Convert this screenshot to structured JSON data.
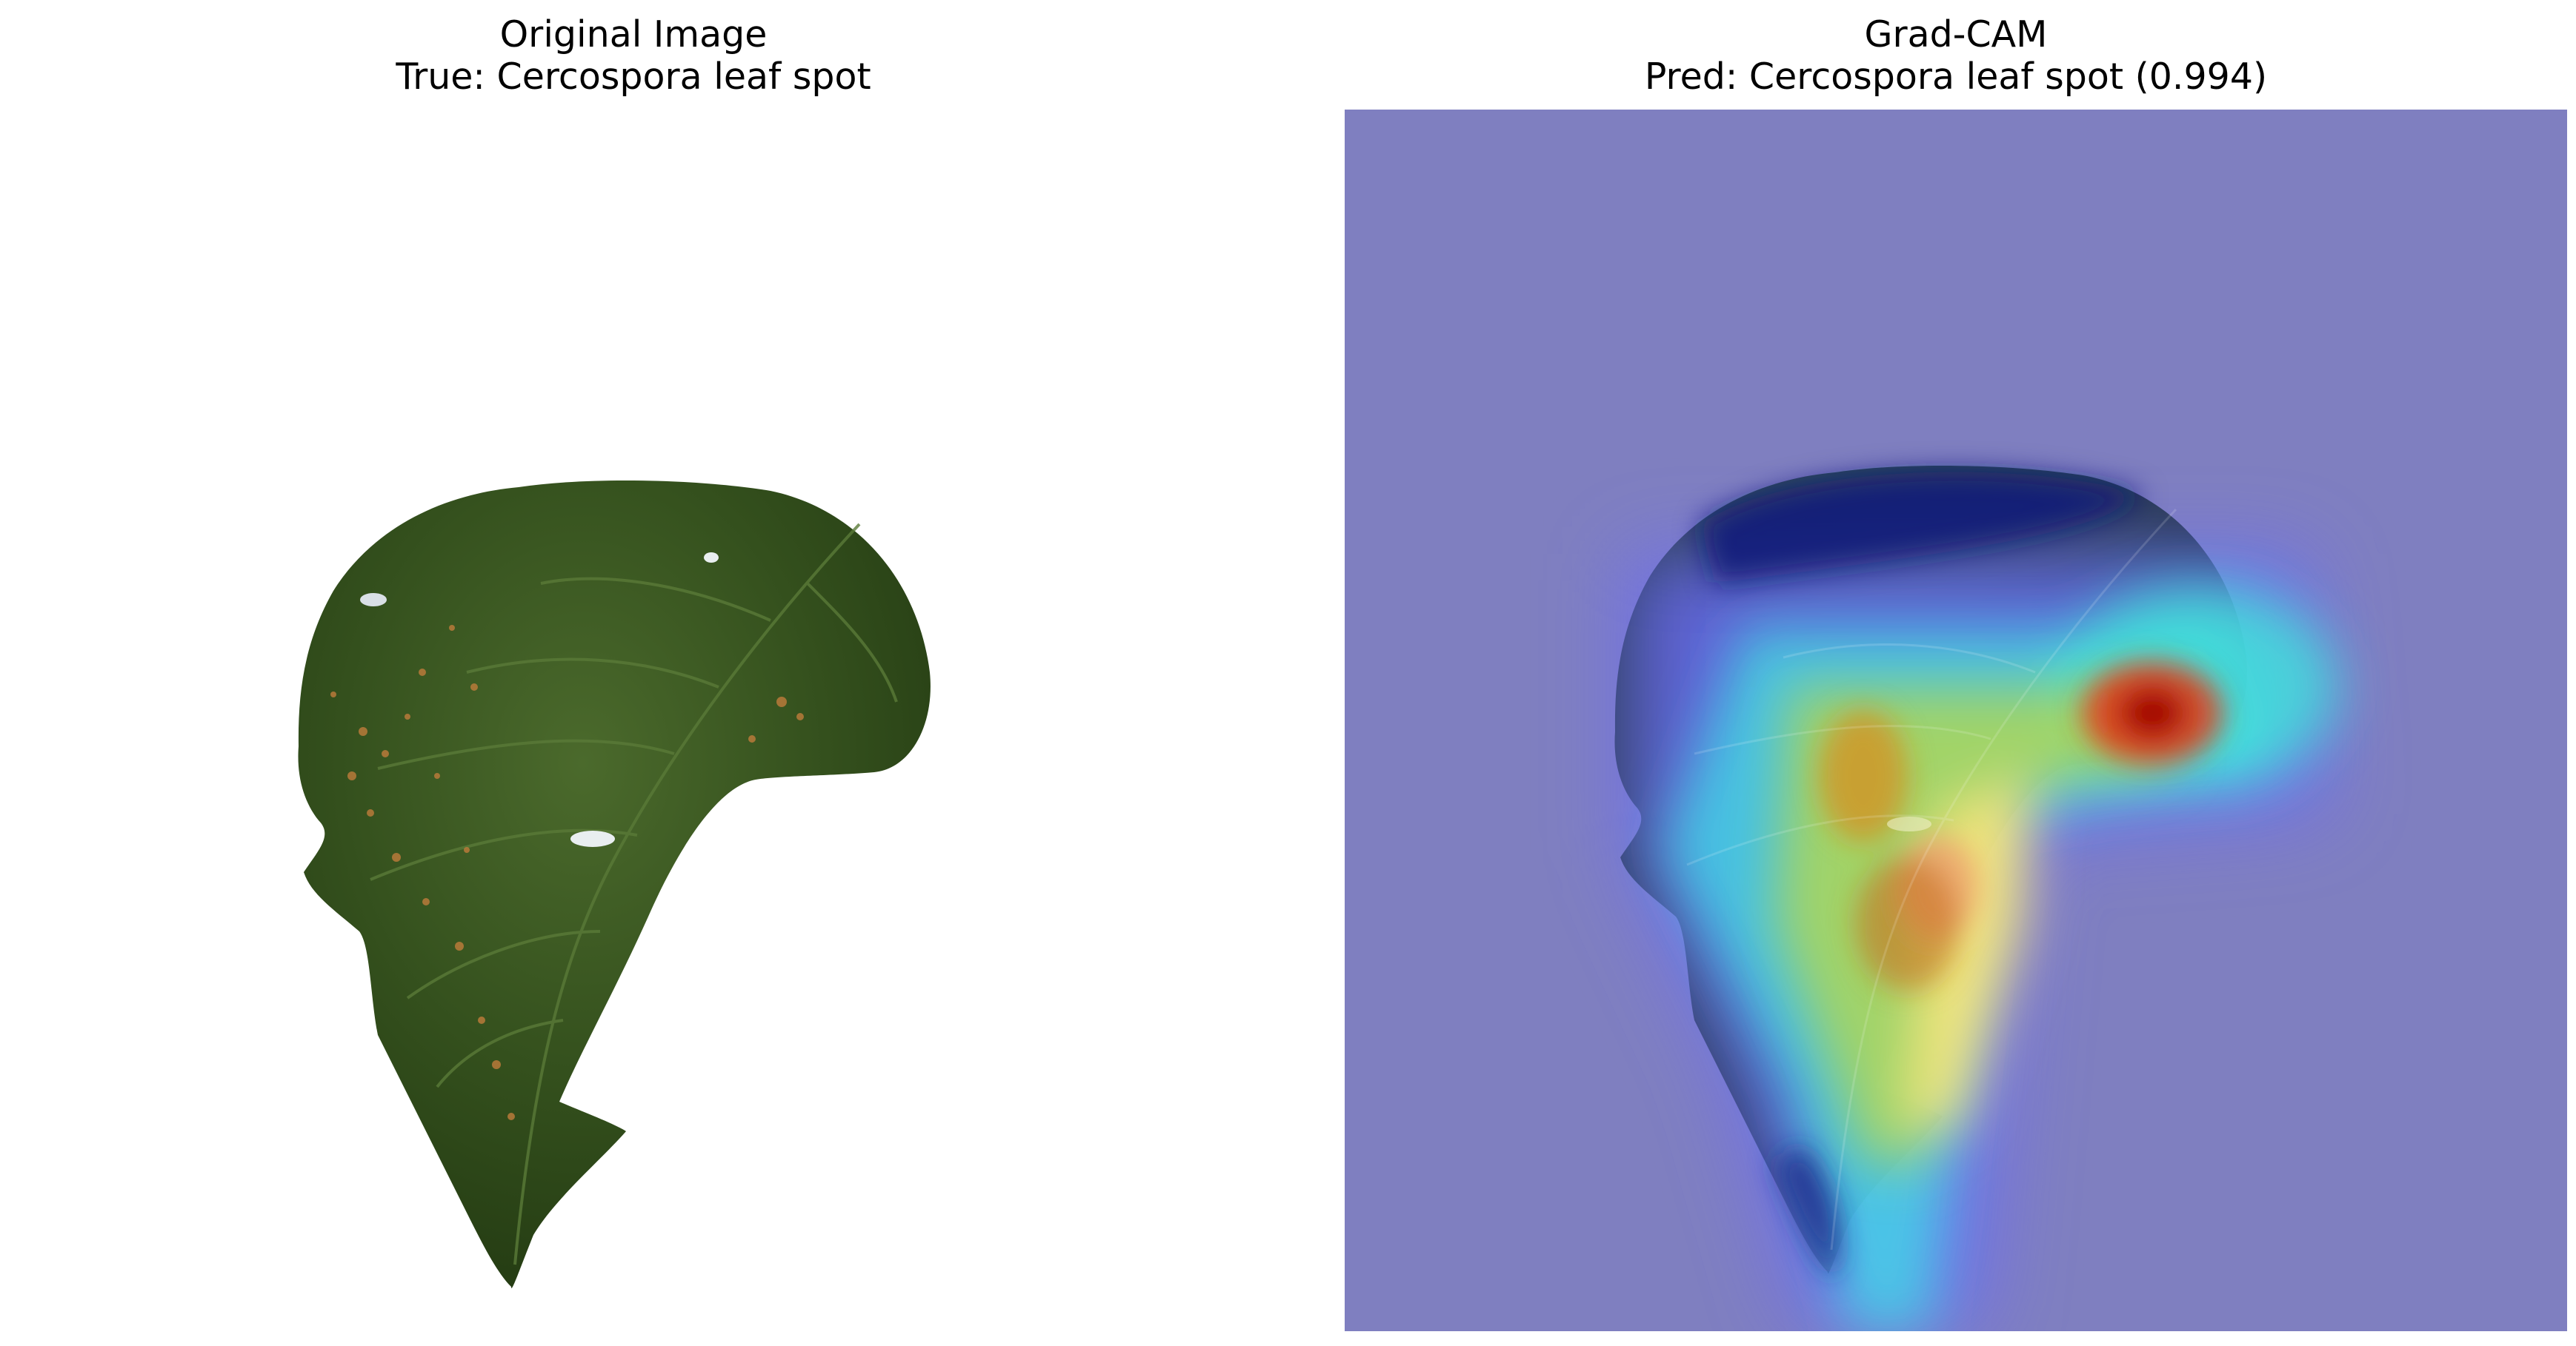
{
  "figure": {
    "left_panel": {
      "title_line1": "Original Image",
      "title_line2": "True: Cercospora leaf spot"
    },
    "right_panel": {
      "title_line1": "Grad-CAM",
      "title_line2": "Pred: Cercospora leaf spot (0.994)"
    }
  },
  "colors": {
    "leaf_green": "#3d5a22",
    "leaf_dark": "#1f3310",
    "background": "#ffffff",
    "heatmap_base": "#7f7fc0",
    "heatmap_hot": "#c00000"
  }
}
